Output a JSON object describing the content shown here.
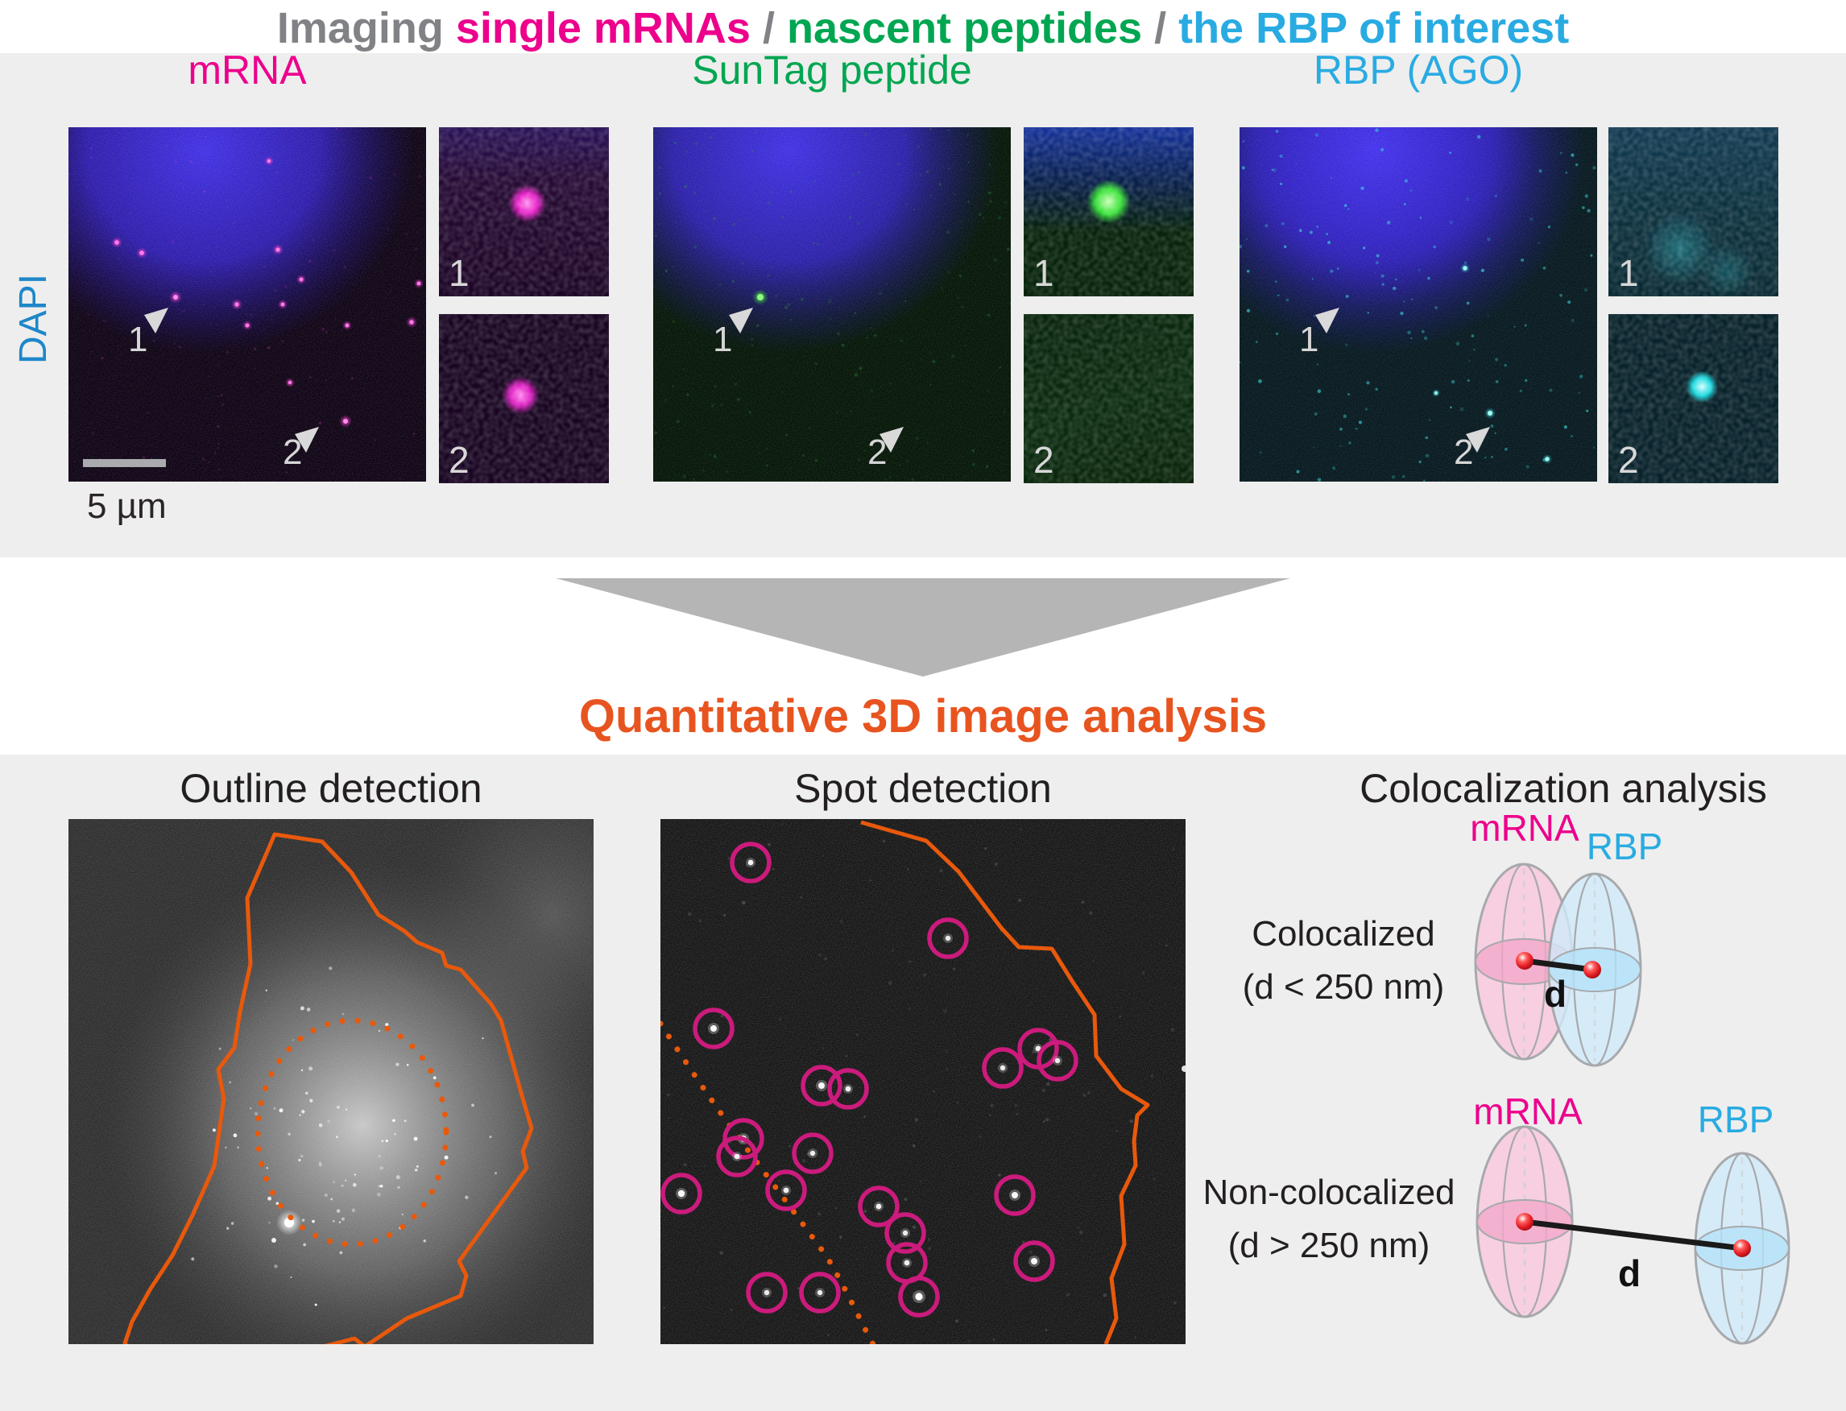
{
  "title": {
    "parts": [
      {
        "text": "Imaging ",
        "color": "#808285"
      },
      {
        "text": "single mRNAs",
        "color": "#ec008c"
      },
      {
        "text": " / ",
        "color": "#808285"
      },
      {
        "text": "nascent peptides",
        "color": "#00a651"
      },
      {
        "text": " / ",
        "color": "#808285"
      },
      {
        "text": "the RBP of interest",
        "color": "#29abe2"
      }
    ]
  },
  "top_section": {
    "y_axis_label": "DAPI",
    "scale_bar_label": "5 µm",
    "panels": [
      {
        "label": "mRNA",
        "color": "#ec008c",
        "arrows": [
          {
            "number": "1"
          },
          {
            "number": "2"
          }
        ],
        "insets": [
          {
            "number": "1"
          },
          {
            "number": "2"
          }
        ]
      },
      {
        "label": "SunTag peptide",
        "color": "#00a651",
        "arrows": [
          {
            "number": "1"
          },
          {
            "number": "2"
          }
        ],
        "insets": [
          {
            "number": "1"
          },
          {
            "number": "2"
          }
        ]
      },
      {
        "label": "RBP (AGO)",
        "color": "#29abe2",
        "arrows": [
          {
            "number": "1"
          },
          {
            "number": "2"
          }
        ],
        "insets": [
          {
            "number": "1"
          },
          {
            "number": "2"
          }
        ]
      }
    ]
  },
  "flow": {
    "heading": "Quantitative 3D image analysis",
    "heading_color": "#e8541f"
  },
  "bottom_section": {
    "panel_titles": [
      "Outline detection",
      "Spot detection",
      "Colocalization analysis"
    ],
    "colocalization": {
      "mrna_color": "#ec008c",
      "rbp_color": "#29abe2",
      "cases": [
        {
          "label_line1": "Colocalized",
          "label_line2": "(d < 250 nm)",
          "mrna_label": "mRNA",
          "rbp_label": "RBP",
          "distance_label": "d"
        },
        {
          "label_line1": "Non-colocalized",
          "label_line2": "(d > 250 nm)",
          "mrna_label": "mRNA",
          "rbp_label": "RBP",
          "distance_label": "d"
        }
      ]
    }
  },
  "colors": {
    "section_background": "#eeeeee",
    "flow_triangle": "#b5b5b5",
    "cell_outline_orange": "#e8590c",
    "spot_circle_magenta": "#cb1b7c",
    "dapi_label_blue": "#1e87c9"
  }
}
